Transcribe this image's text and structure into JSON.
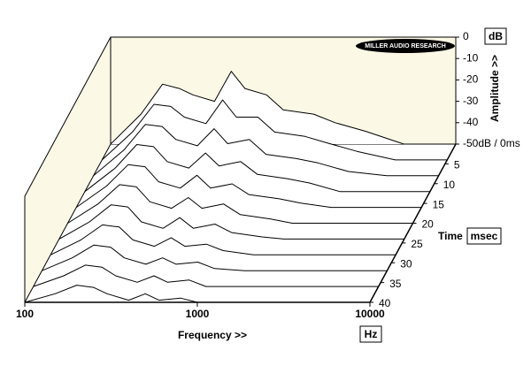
{
  "chart_data": {
    "type": "waterfall",
    "logo": "MILLER AUDIO RESEARCH",
    "y_label": "Amplitude >>",
    "y_unit": "dB",
    "x_label": "Frequency >>",
    "x_unit": "Hz",
    "z_label": "Time",
    "z_unit": "msec",
    "x_log": true,
    "xlim": [
      100,
      10000
    ],
    "xticks": [
      100,
      1000,
      10000
    ],
    "ylim": [
      -50,
      0
    ],
    "yticks": [
      0,
      -10,
      -20,
      -30,
      -40,
      {
        "value": -50,
        "label": "-50dB / 0ms"
      }
    ],
    "zlim": [
      0,
      40
    ],
    "zticks": [
      5,
      10,
      15,
      20,
      25,
      30,
      35,
      40
    ],
    "background": "#fbf8e6",
    "line_color": "#000000",
    "frequencies": [
      100,
      150,
      200,
      250,
      300,
      400,
      500,
      600,
      800,
      1000,
      1500,
      2000,
      3000,
      5000,
      10000
    ],
    "slices": [
      {
        "time": 0,
        "values": [
          -50,
          -36,
          -22,
          -24,
          -27,
          -30,
          -16,
          -24,
          -27,
          -34,
          -36,
          -40,
          -44,
          -50,
          -50
        ]
      },
      {
        "time": 4,
        "values": [
          -50,
          -37,
          -24,
          -25,
          -30,
          -33,
          -22,
          -30,
          -30,
          -37,
          -39,
          -42,
          -46,
          -50,
          -50
        ]
      },
      {
        "time": 8,
        "values": [
          -50,
          -38,
          -26,
          -27,
          -33,
          -36,
          -28,
          -35,
          -33,
          -40,
          -42,
          -44,
          -48,
          -50,
          -50
        ]
      },
      {
        "time": 12,
        "values": [
          -50,
          -39,
          -28,
          -29,
          -36,
          -39,
          -32,
          -38,
          -36,
          -42,
          -44,
          -46,
          -50,
          -50,
          -50
        ]
      },
      {
        "time": 16,
        "values": [
          -50,
          -40,
          -30,
          -31,
          -38,
          -41,
          -35,
          -41,
          -39,
          -44,
          -46,
          -48,
          -50,
          -50,
          -50
        ]
      },
      {
        "time": 20,
        "values": [
          -50,
          -41,
          -32,
          -33,
          -40,
          -43,
          -38,
          -43,
          -41,
          -46,
          -48,
          -50,
          -50,
          -50,
          -50
        ]
      },
      {
        "time": 24,
        "values": [
          -50,
          -42,
          -34,
          -35,
          -42,
          -45,
          -40,
          -45,
          -43,
          -47,
          -49,
          -50,
          -50,
          -50,
          -50
        ]
      },
      {
        "time": 28,
        "values": [
          -50,
          -43,
          -36,
          -37,
          -43,
          -46,
          -42,
          -46,
          -45,
          -48,
          -50,
          -50,
          -50,
          -50,
          -50
        ]
      },
      {
        "time": 32,
        "values": [
          -50,
          -44,
          -38,
          -39,
          -44,
          -47,
          -44,
          -47,
          -46,
          -49,
          -50,
          -50,
          -50,
          -50,
          -50
        ]
      },
      {
        "time": 36,
        "values": [
          -50,
          -45,
          -40,
          -41,
          -45,
          -48,
          -45,
          -48,
          -47,
          -50,
          -50,
          -50,
          -50,
          -50,
          -50
        ]
      },
      {
        "time": 40,
        "values": [
          -50,
          -46,
          -42,
          -43,
          -46,
          -49,
          -46,
          -49,
          -48,
          -50,
          -50,
          -50,
          -50,
          -50,
          -50
        ]
      }
    ]
  }
}
